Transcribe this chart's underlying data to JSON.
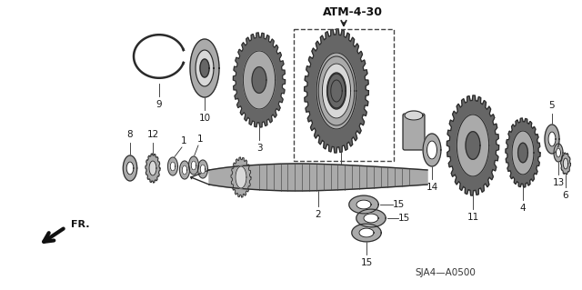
{
  "background_color": "#ffffff",
  "diagram_label": "ATM-4-30",
  "footer_label": "SJA4—A0500",
  "fr_label": "FR.",
  "line_color": "#2a2a2a",
  "fill_light": "#d8d8d8",
  "fill_mid": "#aaaaaa",
  "fill_dark": "#666666",
  "fill_teeth": "#555555"
}
